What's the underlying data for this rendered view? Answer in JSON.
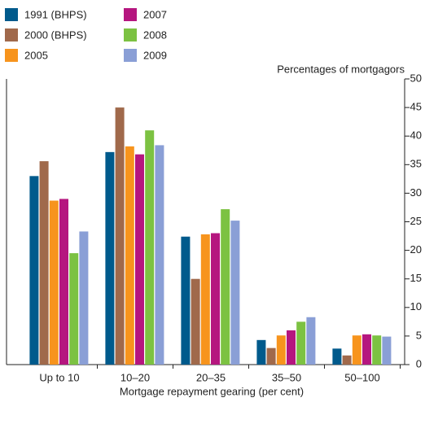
{
  "chart_data": {
    "type": "bar",
    "y_axis_label": "Percentages of mortgagors",
    "x_axis_label": "Mortgage repayment gearing (per cent)",
    "categories": [
      "Up to 10",
      "10–20",
      "20–35",
      "35–50",
      "50–100"
    ],
    "series": [
      {
        "name": "1991 (BHPS)",
        "color": "#005a8c",
        "values": [
          33,
          37.2,
          22.4,
          4.3,
          2.8
        ]
      },
      {
        "name": "2000 (BHPS)",
        "color": "#a0694b",
        "values": [
          35.6,
          45,
          15,
          2.9,
          1.6
        ]
      },
      {
        "name": "2005",
        "color": "#f7941d",
        "values": [
          28.7,
          38.2,
          22.8,
          5.1,
          5.1
        ]
      },
      {
        "name": "2007",
        "color": "#b5167f",
        "values": [
          29,
          36.8,
          23,
          6,
          5.3
        ]
      },
      {
        "name": "2008",
        "color": "#7cc242",
        "values": [
          19.5,
          41,
          27.2,
          7.5,
          5.1
        ]
      },
      {
        "name": "2009",
        "color": "#8a9fd6",
        "values": [
          23.3,
          38.4,
          25.2,
          8.3,
          4.9
        ]
      }
    ],
    "ylim": [
      0,
      50
    ],
    "yticks": [
      0,
      5,
      10,
      15,
      20,
      25,
      30,
      35,
      40,
      45,
      50
    ]
  }
}
